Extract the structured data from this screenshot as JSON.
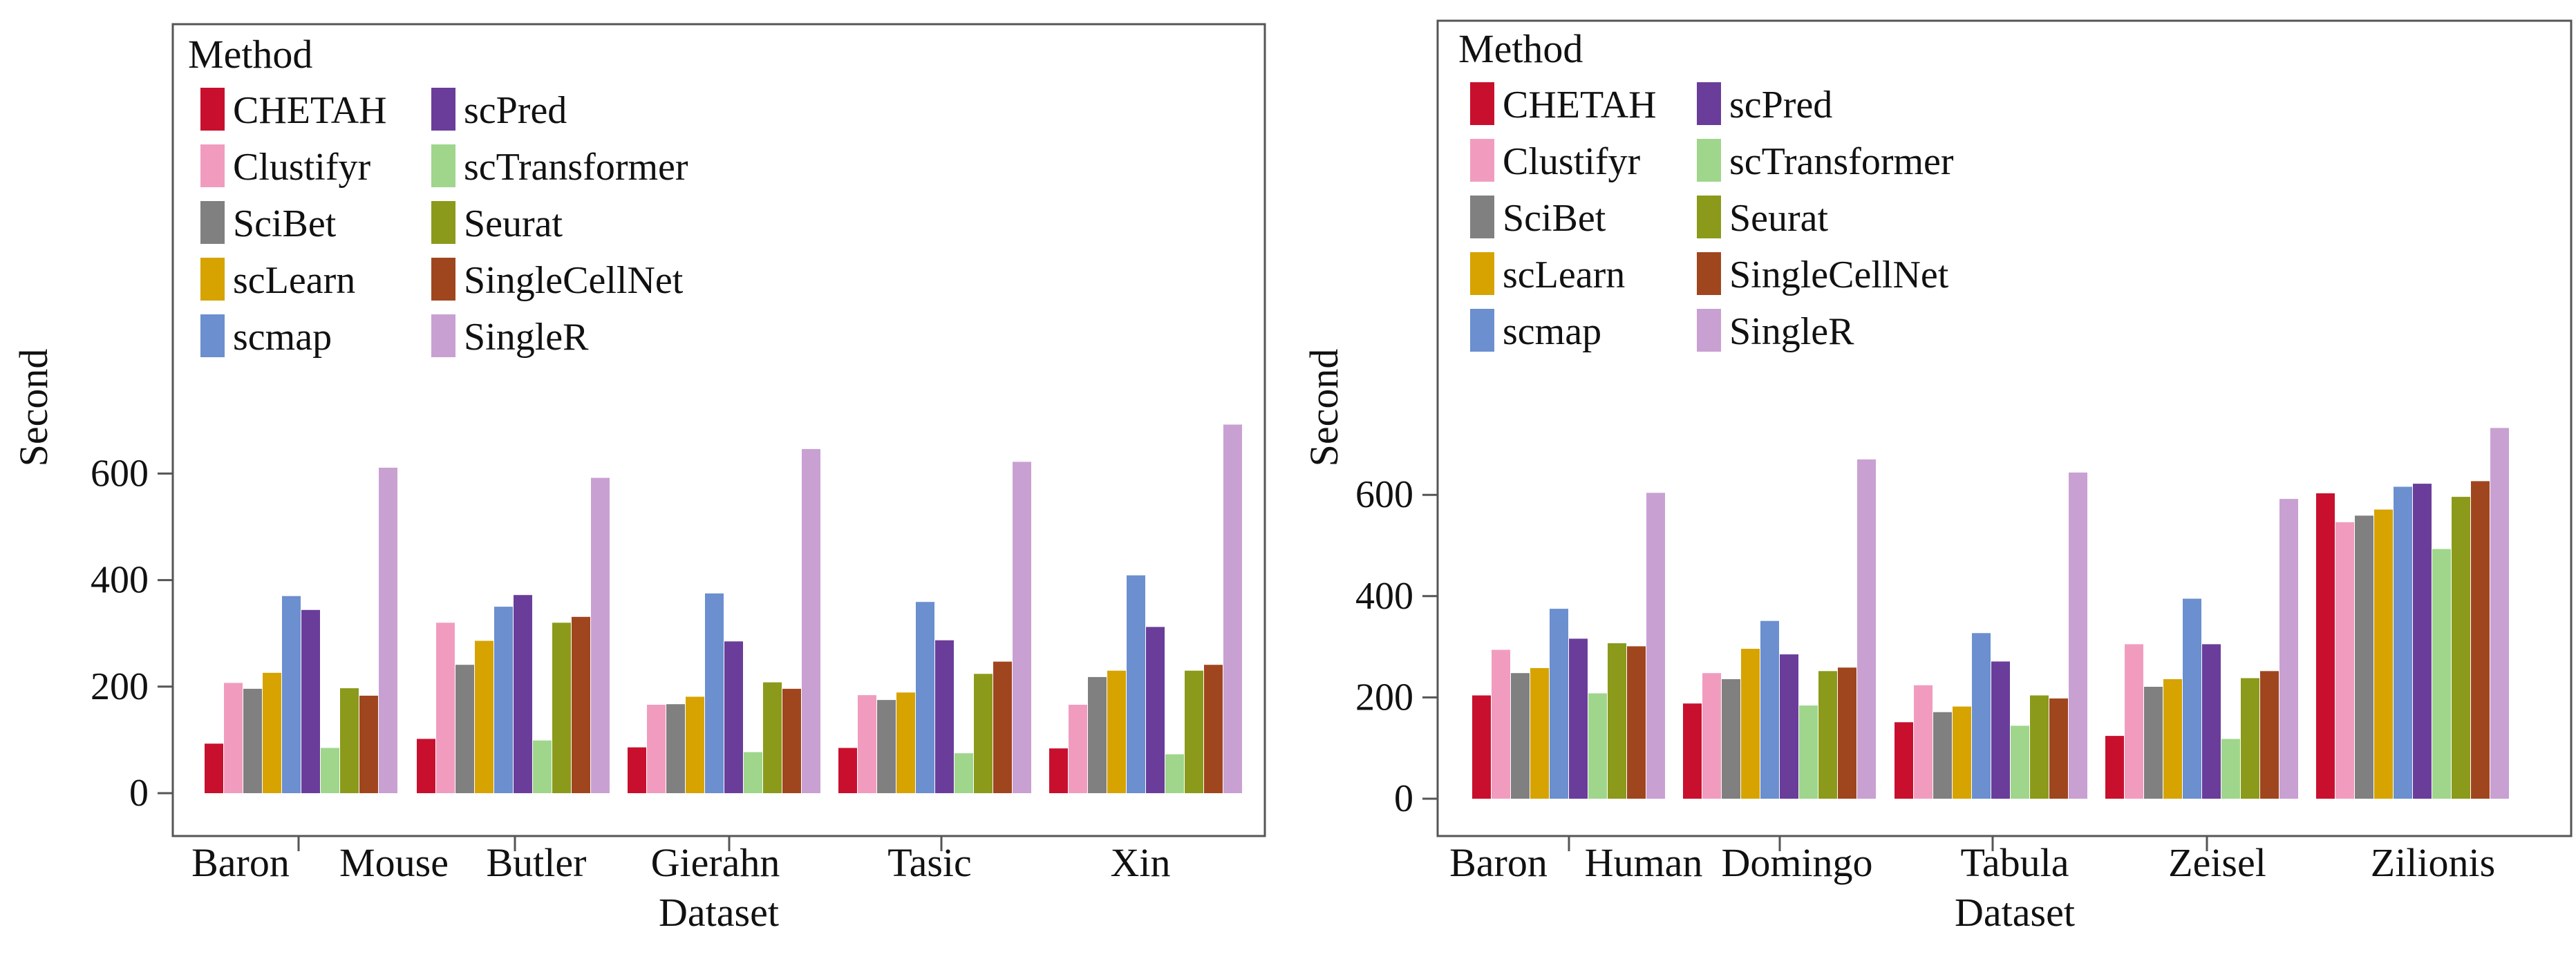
{
  "chart_data": [
    {
      "type": "bar",
      "title": "",
      "xlabel": "Dataset",
      "ylabel": "Second",
      "ylim": [
        0,
        710
      ],
      "yticks": [
        0,
        200,
        400,
        600
      ],
      "grid": false,
      "legend": {
        "title": "Method",
        "placement": "top-left"
      },
      "categories": [
        "Baron Mouse",
        "Butler",
        "Gierahn",
        "Tasic",
        "Xin"
      ],
      "category_labels": [
        "Baron",
        "Mouse",
        "Butler",
        "Gierahn",
        "Tasic",
        "Xin"
      ],
      "series": [
        {
          "name": "CHETAH",
          "color": "#c8102e",
          "values": [
            93,
            102,
            86,
            85,
            84
          ]
        },
        {
          "name": "Clustifyr",
          "color": "#f19cbf",
          "values": [
            207,
            320,
            166,
            184,
            166
          ]
        },
        {
          "name": "SciBet",
          "color": "#808080",
          "values": [
            196,
            241,
            167,
            175,
            218
          ]
        },
        {
          "name": "scLearn",
          "color": "#d6a300",
          "values": [
            226,
            286,
            181,
            189,
            230
          ]
        },
        {
          "name": "scmap",
          "color": "#6b8fcf",
          "values": [
            370,
            350,
            375,
            359,
            409
          ]
        },
        {
          "name": "scPred",
          "color": "#6a3d9a",
          "values": [
            344,
            372,
            285,
            287,
            312
          ]
        },
        {
          "name": "scTransformer",
          "color": "#9fd68c",
          "values": [
            85,
            99,
            77,
            75,
            73
          ]
        },
        {
          "name": "Seurat",
          "color": "#8b9a1a",
          "values": [
            197,
            320,
            208,
            224,
            230
          ]
        },
        {
          "name": "SingleCellNet",
          "color": "#a0461e",
          "values": [
            183,
            331,
            196,
            247,
            241
          ]
        },
        {
          "name": "SingleR",
          "color": "#c9a0d2",
          "values": [
            611,
            592,
            646,
            622,
            692
          ]
        }
      ]
    },
    {
      "type": "bar",
      "title": "",
      "xlabel": "Dataset",
      "ylabel": "Second",
      "ylim": [
        0,
        760
      ],
      "yticks": [
        0,
        200,
        400,
        600
      ],
      "grid": false,
      "legend": {
        "title": "Method",
        "placement": "top-left"
      },
      "categories": [
        "Baron Human",
        "Domingo",
        "Tabula",
        "Zeisel",
        "Zilionis"
      ],
      "category_labels": [
        "Baron",
        "Human",
        "Domingo",
        "Tabula",
        "Zeisel",
        "Zilionis"
      ],
      "series": [
        {
          "name": "CHETAH",
          "color": "#c8102e",
          "values": [
            204,
            188,
            151,
            124,
            603
          ]
        },
        {
          "name": "Clustifyr",
          "color": "#f19cbf",
          "values": [
            294,
            248,
            224,
            305,
            546
          ]
        },
        {
          "name": "SciBet",
          "color": "#808080",
          "values": [
            248,
            236,
            171,
            221,
            559
          ]
        },
        {
          "name": "scLearn",
          "color": "#d6a300",
          "values": [
            258,
            296,
            182,
            236,
            571
          ]
        },
        {
          "name": "scmap",
          "color": "#6b8fcf",
          "values": [
            375,
            351,
            327,
            395,
            616
          ]
        },
        {
          "name": "scPred",
          "color": "#6a3d9a",
          "values": [
            316,
            285,
            271,
            305,
            622
          ]
        },
        {
          "name": "scTransformer",
          "color": "#9fd68c",
          "values": [
            208,
            184,
            144,
            118,
            493
          ]
        },
        {
          "name": "Seurat",
          "color": "#8b9a1a",
          "values": [
            307,
            252,
            204,
            238,
            596
          ]
        },
        {
          "name": "SingleCellNet",
          "color": "#a0461e",
          "values": [
            301,
            259,
            198,
            252,
            627
          ]
        },
        {
          "name": "SingleR",
          "color": "#c9a0d2",
          "values": [
            604,
            670,
            644,
            592,
            732
          ]
        }
      ]
    }
  ]
}
